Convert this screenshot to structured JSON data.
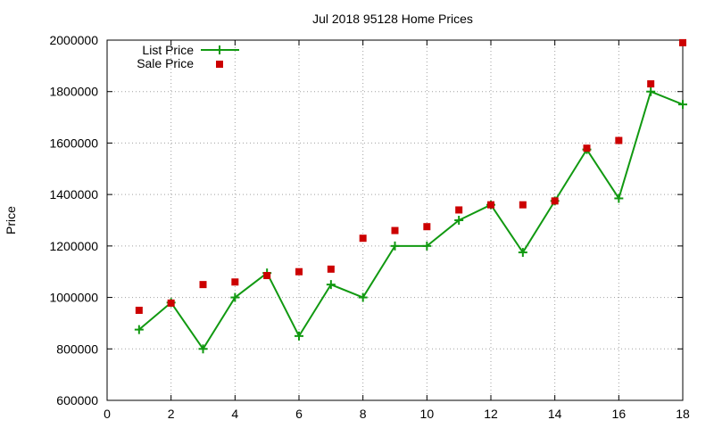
{
  "chart_data": {
    "type": "line",
    "title": "Jul 2018 95128 Home Prices",
    "xlabel": "",
    "ylabel": "Price",
    "xlim": [
      0,
      18
    ],
    "ylim": [
      600000,
      2000000
    ],
    "xticks": [
      0,
      2,
      4,
      6,
      8,
      10,
      12,
      14,
      16,
      18
    ],
    "xtick_labels": [
      "0",
      "2",
      "4",
      "6",
      "8",
      "10",
      "12",
      "14",
      "16",
      "18"
    ],
    "yticks": [
      600000,
      800000,
      1000000,
      1200000,
      1400000,
      1600000,
      1800000,
      2000000
    ],
    "ytick_labels": [
      "600000",
      "800000",
      "1000000",
      "1200000",
      "1400000",
      "1600000",
      "1800000",
      "2000000"
    ],
    "grid": true,
    "legend_position": "top-left",
    "series": [
      {
        "name": "List Price",
        "kind": "line",
        "marker": "plus",
        "color": "#119911",
        "x": [
          1,
          2,
          3,
          4,
          5,
          6,
          7,
          8,
          9,
          10,
          11,
          12,
          13,
          14,
          15,
          16,
          17,
          18
        ],
        "y": [
          875000,
          980000,
          800000,
          1000000,
          1095000,
          850000,
          1050000,
          1000000,
          1200000,
          1200000,
          1300000,
          1360000,
          1175000,
          1375000,
          1575000,
          1385000,
          1800000,
          1750000
        ]
      },
      {
        "name": "Sale Price",
        "kind": "scatter",
        "marker": "square",
        "color": "#cc0000",
        "x": [
          1,
          2,
          3,
          4,
          5,
          6,
          7,
          8,
          9,
          10,
          11,
          12,
          13,
          14,
          15,
          16,
          17,
          18
        ],
        "y": [
          950000,
          978000,
          1050000,
          1060000,
          1085000,
          1100000,
          1110000,
          1230000,
          1260000,
          1275000,
          1340000,
          1360000,
          1360000,
          1375000,
          1580000,
          1610000,
          1830000,
          1990000
        ]
      }
    ]
  }
}
